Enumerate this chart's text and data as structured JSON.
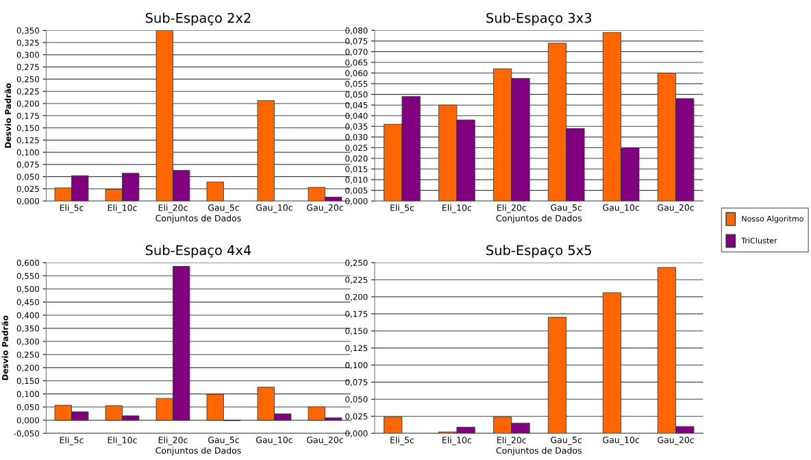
{
  "chart_data": [
    {
      "type": "bar",
      "title": "Sub-Espaço 2x2",
      "xlabel": "Conjuntos de Dados",
      "ylabel": "Desvio Padrão",
      "categories": [
        "Eli_5c",
        "Eli_10c",
        "Eli_20c",
        "Gau_5c",
        "Gau_10c",
        "Gau_20c"
      ],
      "series": [
        {
          "name": "Nosso Algoritmo",
          "color": "#ff6600",
          "values": [
            0.027,
            0.024,
            0.35,
            0.039,
            0.206,
            0.028
          ]
        },
        {
          "name": "TriCluster",
          "color": "#800080",
          "values": [
            0.052,
            0.057,
            0.063,
            null,
            null,
            0.008
          ]
        }
      ],
      "legend": "right",
      "ylim": [
        0,
        0.35
      ],
      "yticks": [
        {
          "value": 0,
          "label": "0,000"
        },
        {
          "value": 0.025,
          "label": "0,025"
        },
        {
          "value": 0.05,
          "label": "0,050"
        },
        {
          "value": 0.075,
          "label": "0,075"
        },
        {
          "value": 0.1,
          "label": "0,100"
        },
        {
          "value": 0.125,
          "label": "0,125"
        },
        {
          "value": 0.15,
          "label": "0,150"
        },
        {
          "value": 0.175,
          "label": "0,175"
        },
        {
          "value": 0.2,
          "label": "0,200"
        },
        {
          "value": 0.225,
          "label": "0,225"
        },
        {
          "value": 0.25,
          "label": "0,250"
        },
        {
          "value": 0.275,
          "label": "0,275"
        },
        {
          "value": 0.3,
          "label": "0,300"
        },
        {
          "value": 0.325,
          "label": "0,325"
        },
        {
          "value": 0.35,
          "label": "0,350"
        }
      ],
      "grid": "y"
    },
    {
      "type": "bar",
      "title": "Sub-Espaço 3x3",
      "xlabel": "Conjuntos de Dados",
      "categories": [
        "Eli_5c",
        "Eli_10c",
        "Eli_20c",
        "Gau_5c",
        "Gau_10c",
        "Gau_20c"
      ],
      "series": [
        {
          "color": "#ff6600",
          "values": [
            0.036,
            0.045,
            0.062,
            0.074,
            0.079,
            0.06
          ]
        },
        {
          "color": "#800080",
          "values": [
            0.049,
            0.038,
            0.0575,
            0.034,
            0.025,
            0.048
          ]
        }
      ],
      "ylim": [
        0,
        0.08
      ],
      "yticks": [
        {
          "value": 0,
          "label": "0,000"
        },
        {
          "value": 0.005,
          "label": "0,005"
        },
        {
          "value": 0.01,
          "label": "0,010"
        },
        {
          "value": 0.015,
          "label": "0,015"
        },
        {
          "value": 0.02,
          "label": "0,020"
        },
        {
          "value": 0.025,
          "label": "0,025"
        },
        {
          "value": 0.03,
          "label": "0,030"
        },
        {
          "value": 0.035,
          "label": "0,035"
        },
        {
          "value": 0.04,
          "label": "0,040"
        },
        {
          "value": 0.045,
          "label": "0,045"
        },
        {
          "value": 0.05,
          "label": "0,050"
        },
        {
          "value": 0.055,
          "label": "0,055"
        },
        {
          "value": 0.06,
          "label": "0,060"
        },
        {
          "value": 0.065,
          "label": "0,065"
        },
        {
          "value": 0.07,
          "label": "0,070"
        },
        {
          "value": 0.075,
          "label": "0,075"
        },
        {
          "value": 0.08,
          "label": "0,080"
        }
      ],
      "grid": "y"
    },
    {
      "type": "bar",
      "title": "Sub-Espaço 4x4",
      "xlabel": "Conjuntos de Dados",
      "ylabel": "Desvio Padrão",
      "categories": [
        "Eli_5c",
        "Eli_10c",
        "Eli_20c",
        "Gau_5c",
        "Gau_10c",
        "Gau_20c"
      ],
      "series": [
        {
          "color": "#ff6600",
          "values": [
            0.057,
            0.055,
            0.083,
            0.099,
            0.126,
            0.051
          ]
        },
        {
          "color": "#800080",
          "values": [
            0.032,
            0.017,
            0.586,
            -0.002,
            0.024,
            0.009
          ]
        }
      ],
      "ylim": [
        -0.05,
        0.6
      ],
      "yticks": [
        {
          "value": -0.05,
          "label": "-0,050"
        },
        {
          "value": 0,
          "label": "0,000"
        },
        {
          "value": 0.05,
          "label": "0,050"
        },
        {
          "value": 0.1,
          "label": "0,100"
        },
        {
          "value": 0.15,
          "label": "0,150"
        },
        {
          "value": 0.2,
          "label": "0,200"
        },
        {
          "value": 0.25,
          "label": "0,250"
        },
        {
          "value": 0.3,
          "label": "0,300"
        },
        {
          "value": 0.35,
          "label": "0,350"
        },
        {
          "value": 0.4,
          "label": "0,400"
        },
        {
          "value": 0.45,
          "label": "0,450"
        },
        {
          "value": 0.5,
          "label": "0,500"
        },
        {
          "value": 0.55,
          "label": "0,550"
        },
        {
          "value": 0.6,
          "label": "0,600"
        }
      ],
      "grid": "y"
    },
    {
      "type": "bar",
      "title": "Sub-Espaço 5x5",
      "xlabel": "Conjuntos de Dados",
      "categories": [
        "Eli_5c",
        "Eli_10c",
        "Eli_20c",
        "Gau_5c",
        "Gau_10c",
        "Gau_20c"
      ],
      "series": [
        {
          "color": "#ff6600",
          "values": [
            0.024,
            0.002,
            0.024,
            0.17,
            0.206,
            0.243
          ]
        },
        {
          "color": "#800080",
          "values": [
            null,
            0.009,
            0.015,
            null,
            null,
            0.01
          ]
        }
      ],
      "ylim": [
        0,
        0.25
      ],
      "yticks": [
        {
          "value": 0,
          "label": "0,000"
        },
        {
          "value": 0.025,
          "label": "0,025"
        },
        {
          "value": 0.05,
          "label": "0,050"
        },
        {
          "value": 0.075,
          "label": "0,075"
        },
        {
          "value": 0.1,
          "label": "0,100"
        },
        {
          "value": 0.125,
          "label": "0,125"
        },
        {
          "value": 0.15,
          "label": "0,150"
        },
        {
          "value": 0.175,
          "label": "0,175"
        },
        {
          "value": 0.2,
          "label": "0,200"
        },
        {
          "value": 0.225,
          "label": "0,225"
        },
        {
          "value": 0.25,
          "label": "0,250"
        }
      ],
      "grid": "y"
    }
  ]
}
